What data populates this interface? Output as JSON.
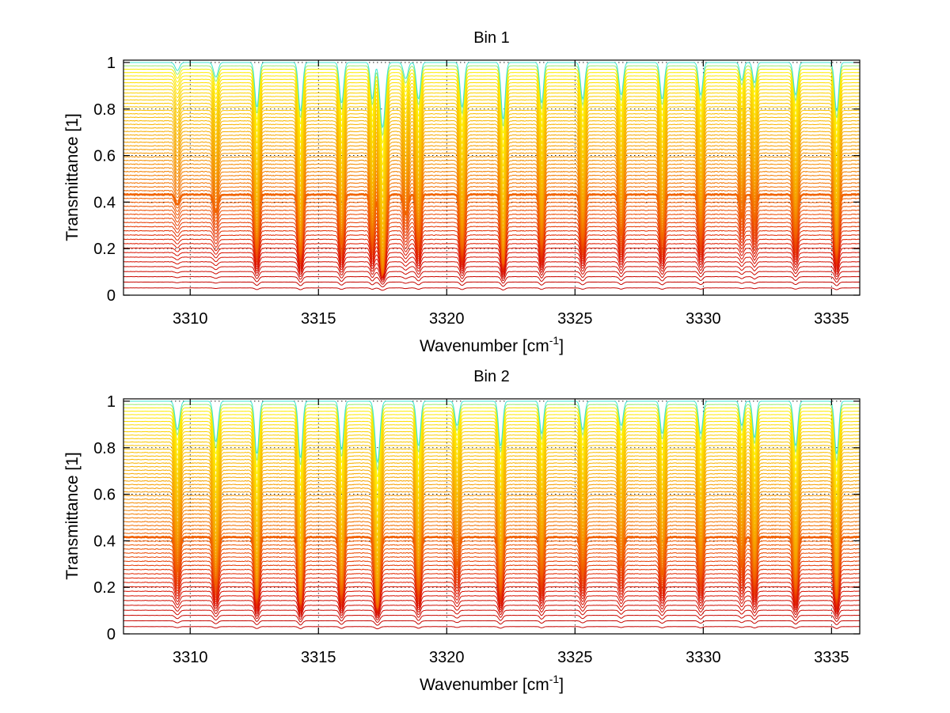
{
  "chart_data": [
    {
      "type": "line",
      "title": "Bin 1",
      "xlabel": "Wavenumber [cm",
      "xlabel_sup": "-1",
      "xlabel_end": "]",
      "ylabel": "Transmittance [1]",
      "xlim": [
        3307.4,
        3336.1
      ],
      "ylim": [
        0,
        1.01
      ],
      "xticks": [
        3310,
        3315,
        3320,
        3325,
        3330,
        3335
      ],
      "yticks": [
        0,
        0.2,
        0.4,
        0.6,
        0.8,
        1
      ],
      "ytick_labels": [
        "0",
        "0.2",
        "0.4",
        "0.6",
        "0.8",
        "1"
      ],
      "grid": true,
      "series_count": 60,
      "series_levels_min": 0.0,
      "series_levels_max": 1.0,
      "highlight_level": 0.43,
      "absorption_lines": [
        {
          "x": 3309.5,
          "depth": 0.1,
          "width": 0.12
        },
        {
          "x": 3311.0,
          "depth": 0.18,
          "width": 0.12
        },
        {
          "x": 3312.6,
          "depth": 0.55,
          "width": 0.11
        },
        {
          "x": 3314.3,
          "depth": 0.6,
          "width": 0.11
        },
        {
          "x": 3315.9,
          "depth": 0.5,
          "width": 0.11
        },
        {
          "x": 3317.1,
          "depth": 0.45,
          "width": 0.1
        },
        {
          "x": 3317.5,
          "depth": 0.8,
          "width": 0.14
        },
        {
          "x": 3318.4,
          "depth": 0.2,
          "width": 0.12
        },
        {
          "x": 3318.9,
          "depth": 0.45,
          "width": 0.11
        },
        {
          "x": 3320.6,
          "depth": 0.55,
          "width": 0.11
        },
        {
          "x": 3322.2,
          "depth": 0.7,
          "width": 0.11
        },
        {
          "x": 3323.7,
          "depth": 0.5,
          "width": 0.1
        },
        {
          "x": 3325.3,
          "depth": 0.45,
          "width": 0.11
        },
        {
          "x": 3326.8,
          "depth": 0.4,
          "width": 0.11
        },
        {
          "x": 3328.4,
          "depth": 0.45,
          "width": 0.11
        },
        {
          "x": 3329.9,
          "depth": 0.4,
          "width": 0.11
        },
        {
          "x": 3331.5,
          "depth": 0.22,
          "width": 0.1
        },
        {
          "x": 3332.0,
          "depth": 0.25,
          "width": 0.1
        },
        {
          "x": 3333.6,
          "depth": 0.4,
          "width": 0.11
        },
        {
          "x": 3335.2,
          "depth": 0.6,
          "width": 0.11
        }
      ]
    },
    {
      "type": "line",
      "title": "Bin 2",
      "xlabel": "Wavenumber [cm",
      "xlabel_sup": "-1",
      "xlabel_end": "]",
      "ylabel": "Transmittance [1]",
      "xlim": [
        3307.4,
        3336.1
      ],
      "ylim": [
        0,
        1.01
      ],
      "xticks": [
        3310,
        3315,
        3320,
        3325,
        3330,
        3335
      ],
      "yticks": [
        0,
        0.2,
        0.4,
        0.6,
        0.8,
        1
      ],
      "ytick_labels": [
        "0",
        "0.2",
        "0.4",
        "0.6",
        "0.8",
        "1"
      ],
      "grid": true,
      "series_count": 60,
      "series_levels_min": 0.0,
      "series_levels_max": 1.0,
      "highlight_level": 0.42,
      "absorption_lines": [
        {
          "x": 3309.5,
          "depth": 0.35,
          "width": 0.12
        },
        {
          "x": 3311.0,
          "depth": 0.5,
          "width": 0.12
        },
        {
          "x": 3312.6,
          "depth": 0.65,
          "width": 0.11
        },
        {
          "x": 3314.3,
          "depth": 0.7,
          "width": 0.11
        },
        {
          "x": 3315.9,
          "depth": 0.6,
          "width": 0.11
        },
        {
          "x": 3317.3,
          "depth": 0.75,
          "width": 0.13
        },
        {
          "x": 3318.9,
          "depth": 0.55,
          "width": 0.11
        },
        {
          "x": 3320.4,
          "depth": 0.3,
          "width": 0.11
        },
        {
          "x": 3322.1,
          "depth": 0.55,
          "width": 0.11
        },
        {
          "x": 3323.7,
          "depth": 0.4,
          "width": 0.1
        },
        {
          "x": 3325.3,
          "depth": 0.35,
          "width": 0.11
        },
        {
          "x": 3326.8,
          "depth": 0.3,
          "width": 0.11
        },
        {
          "x": 3328.4,
          "depth": 0.4,
          "width": 0.11
        },
        {
          "x": 3329.9,
          "depth": 0.4,
          "width": 0.11
        },
        {
          "x": 3331.5,
          "depth": 0.3,
          "width": 0.1
        },
        {
          "x": 3332.0,
          "depth": 0.45,
          "width": 0.1
        },
        {
          "x": 3333.6,
          "depth": 0.55,
          "width": 0.11
        },
        {
          "x": 3335.2,
          "depth": 0.65,
          "width": 0.11
        }
      ]
    }
  ]
}
